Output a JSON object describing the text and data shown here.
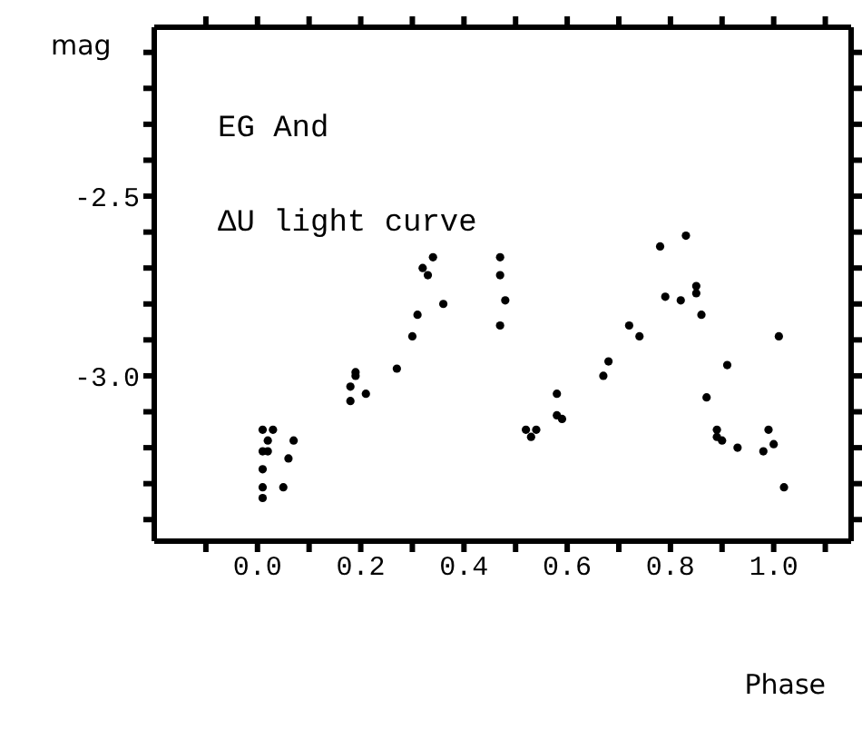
{
  "chart_data": {
    "type": "scatter",
    "xlabel": "Phase",
    "ylabel": "mag",
    "annotations": [
      "EG And",
      "ΔU light curve"
    ],
    "xlim": [
      -0.2,
      1.15
    ],
    "ylim": [
      -3.46,
      -2.03
    ],
    "xticks": [
      {
        "value": -0.1,
        "label": null
      },
      {
        "value": 0,
        "label": "0.0"
      },
      {
        "value": 0.1,
        "label": null
      },
      {
        "value": 0.2,
        "label": "0.2"
      },
      {
        "value": 0.3,
        "label": null
      },
      {
        "value": 0.4,
        "label": "0.4"
      },
      {
        "value": 0.5,
        "label": null
      },
      {
        "value": 0.6,
        "label": "0.6"
      },
      {
        "value": 0.7,
        "label": null
      },
      {
        "value": 0.8,
        "label": "0.8"
      },
      {
        "value": 0.9,
        "label": null
      },
      {
        "value": 1.0,
        "label": "1.0"
      },
      {
        "value": 1.1,
        "label": null
      }
    ],
    "yticks": [
      {
        "value": -2.1,
        "label": null
      },
      {
        "value": -2.2,
        "label": null
      },
      {
        "value": -2.3,
        "label": null
      },
      {
        "value": -2.4,
        "label": null
      },
      {
        "value": -2.5,
        "label": "-2.5"
      },
      {
        "value": -2.6,
        "label": null
      },
      {
        "value": -2.7,
        "label": null
      },
      {
        "value": -2.8,
        "label": null
      },
      {
        "value": -2.9,
        "label": null
      },
      {
        "value": -3.0,
        "label": "-3.0"
      },
      {
        "value": -3.1,
        "label": null
      },
      {
        "value": -3.2,
        "label": null
      },
      {
        "value": -3.3,
        "label": null
      },
      {
        "value": -3.4,
        "label": null
      }
    ],
    "marker": "circle",
    "series": [
      {
        "color": "#000000",
        "x": [
          0.01,
          0.03,
          0.02,
          0.01,
          0.02,
          0.01,
          0.01,
          0.01,
          0.05,
          0.06,
          0.07,
          0.18,
          0.18,
          0.19,
          0.19,
          0.21,
          0.27,
          0.3,
          0.31,
          0.32,
          0.33,
          0.34,
          0.36,
          0.47,
          0.47,
          0.47,
          0.48,
          0.52,
          0.53,
          0.54,
          0.58,
          0.58,
          0.59,
          0.67,
          0.68,
          0.72,
          0.74,
          0.78,
          0.83,
          0.79,
          0.82,
          0.85,
          0.85,
          0.86,
          0.91,
          0.87,
          0.89,
          0.89,
          0.9,
          0.93,
          0.98,
          1.0,
          0.99,
          1.01,
          1.02
        ],
        "values": [
          -3.15,
          -3.15,
          -3.18,
          -3.21,
          -3.21,
          -3.26,
          -3.31,
          -3.34,
          -3.31,
          -3.23,
          -3.18,
          -3.07,
          -3.03,
          -3.0,
          -2.99,
          -3.05,
          -2.98,
          -2.89,
          -2.83,
          -2.7,
          -2.72,
          -2.67,
          -2.8,
          -2.67,
          -2.72,
          -2.86,
          -2.79,
          -3.15,
          -3.17,
          -3.15,
          -3.05,
          -3.11,
          -3.12,
          -3.0,
          -2.96,
          -2.86,
          -2.89,
          -2.64,
          -2.61,
          -2.78,
          -2.79,
          -2.75,
          -2.77,
          -2.83,
          -2.97,
          -3.06,
          -3.15,
          -3.17,
          -3.18,
          -3.2,
          -3.21,
          -3.19,
          -3.15,
          -2.89,
          -3.31
        ]
      }
    ]
  }
}
